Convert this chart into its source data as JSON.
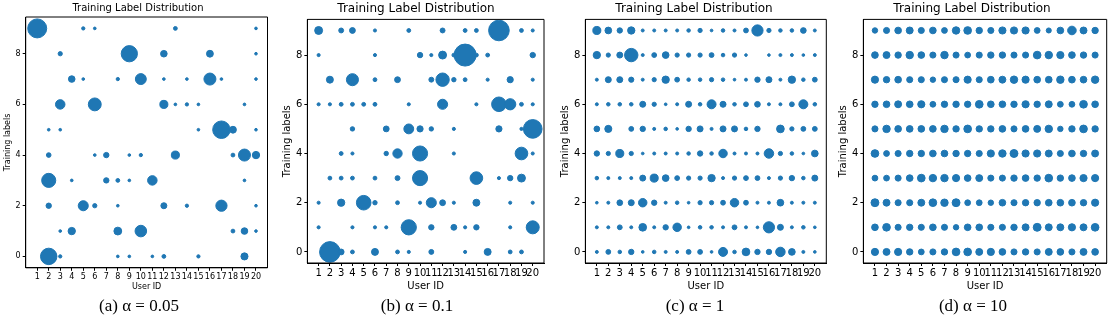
{
  "chart_data": [
    {
      "type": "bubble",
      "title": "Training Label Distribution",
      "xlabel": "User ID",
      "ylabel": "Training labels",
      "xlim": [
        0,
        21
      ],
      "xticks": [
        1,
        2,
        3,
        4,
        5,
        6,
        7,
        8,
        9,
        10,
        11,
        12,
        13,
        14,
        15,
        16,
        17,
        18,
        19,
        20
      ],
      "ylim": [
        -0.45,
        9.45
      ],
      "yticks": [
        0,
        2,
        4,
        6,
        8
      ],
      "annotations": [
        "(a) α = 0.05"
      ],
      "series": [
        {
          "color": "#1f77b4",
          "x": [
            1,
            5,
            6,
            13,
            20
          ],
          "values": [
            9,
            9,
            9,
            9,
            9
          ],
          "sizes": [
            1,
            0.03,
            0.02,
            0.04,
            0.02
          ]
        },
        {
          "color": "#1f77b4",
          "x": [
            3,
            9,
            12,
            16,
            20
          ],
          "values": [
            8,
            8,
            8,
            8,
            8
          ],
          "sizes": [
            0.05,
            0.73,
            0.12,
            0.13,
            0.02
          ]
        },
        {
          "color": "#1f77b4",
          "x": [
            4,
            5,
            8,
            10,
            12,
            14,
            16,
            17,
            20
          ],
          "values": [
            7,
            7,
            7,
            7,
            7,
            7,
            7,
            7,
            7
          ],
          "sizes": [
            0.12,
            0.02,
            0.03,
            0.33,
            0.02,
            0.02,
            0.4,
            0.02,
            0.02
          ]
        },
        {
          "color": "#1f77b4",
          "x": [
            3,
            6,
            12,
            13,
            14,
            15,
            19
          ],
          "values": [
            6,
            6,
            6,
            6,
            6,
            6,
            6
          ],
          "sizes": [
            0.25,
            0.46,
            0.18,
            0.02,
            0.03,
            0.02,
            0.02
          ]
        },
        {
          "color": "#1f77b4",
          "x": [
            2,
            3,
            15,
            17,
            18,
            20
          ],
          "values": [
            5,
            5,
            5,
            5,
            5,
            5
          ],
          "sizes": [
            0.02,
            0.02,
            0.02,
            0.85,
            0.13,
            0.02
          ]
        },
        {
          "color": "#1f77b4",
          "x": [
            2,
            6,
            7,
            9,
            10,
            13,
            18,
            19,
            20
          ],
          "values": [
            4,
            4,
            4,
            4,
            4,
            4,
            4,
            4,
            4
          ],
          "sizes": [
            0.06,
            0.02,
            0.08,
            0.02,
            0.03,
            0.18,
            0.04,
            0.4,
            0.15
          ]
        },
        {
          "color": "#1f77b4",
          "x": [
            2,
            4,
            7,
            8,
            9,
            11,
            19
          ],
          "values": [
            3,
            3,
            3,
            3,
            3,
            3,
            3
          ],
          "sizes": [
            0.55,
            0.02,
            0.08,
            0.04,
            0.02,
            0.25,
            0.02
          ]
        },
        {
          "color": "#1f77b4",
          "x": [
            2,
            5,
            6,
            8,
            12,
            14,
            17,
            20
          ],
          "values": [
            2,
            2,
            2,
            2,
            2,
            2,
            2,
            2
          ],
          "sizes": [
            0.08,
            0.28,
            0.05,
            0.02,
            0.1,
            0.03,
            0.35,
            0.02
          ]
        },
        {
          "color": "#1f77b4",
          "x": [
            3,
            4,
            8,
            10,
            18,
            19,
            20
          ],
          "values": [
            1,
            1,
            1,
            1,
            1,
            1,
            1
          ],
          "sizes": [
            0.02,
            0.15,
            0.17,
            0.37,
            0.04,
            0.12,
            0.02
          ]
        },
        {
          "color": "#1f77b4",
          "x": [
            2,
            3,
            8,
            9,
            11,
            12,
            15,
            19
          ],
          "values": [
            0,
            0,
            0,
            0,
            0,
            0,
            0,
            0
          ],
          "sizes": [
            0.75,
            0.03,
            0.02,
            0.02,
            0.02,
            0.04,
            0.03,
            0.14
          ]
        }
      ]
    },
    {
      "type": "bubble",
      "title": "Training Label Distribution",
      "xlabel": "User ID",
      "ylabel": "Training labels",
      "xlim": [
        0,
        21
      ],
      "xticks": [
        1,
        2,
        3,
        4,
        5,
        6,
        7,
        8,
        9,
        10,
        11,
        12,
        13,
        14,
        15,
        16,
        17,
        18,
        19,
        20
      ],
      "ylim": [
        -0.45,
        9.45
      ],
      "yticks": [
        0,
        2,
        4,
        6,
        8
      ],
      "annotations": [
        "(b) α = 0.1"
      ],
      "series": [
        {
          "color": "#1f77b4",
          "x": [
            1,
            3,
            4,
            6,
            9,
            12,
            14,
            15,
            17,
            19,
            20
          ],
          "values": [
            9,
            9,
            9,
            9,
            9,
            9,
            9,
            9,
            9,
            9,
            9
          ],
          "sizes": [
            0.13,
            0.05,
            0.07,
            0.02,
            0.03,
            0.05,
            0.03,
            0.03,
            0.88,
            0.03,
            0.02
          ]
        },
        {
          "color": "#1f77b4",
          "x": [
            1,
            6,
            10,
            11,
            12,
            13,
            14,
            15,
            16,
            20
          ],
          "values": [
            8,
            8,
            8,
            8,
            8,
            8,
            8,
            8,
            8,
            8
          ],
          "sizes": [
            0.02,
            0.02,
            0.06,
            0.02,
            0.13,
            0.03,
            1,
            0.03,
            0.03,
            0.06
          ]
        },
        {
          "color": "#1f77b4",
          "x": [
            2,
            4,
            6,
            8,
            11,
            12,
            13,
            14,
            16,
            18,
            20
          ],
          "values": [
            7,
            7,
            7,
            7,
            7,
            7,
            7,
            7,
            7,
            7,
            7
          ],
          "sizes": [
            0.1,
            0.3,
            0.03,
            0.07,
            0.05,
            0.37,
            0.04,
            0.03,
            0.02,
            0.08,
            0.02
          ]
        },
        {
          "color": "#1f77b4",
          "x": [
            1,
            2,
            3,
            4,
            5,
            6,
            9,
            12,
            15,
            17,
            18,
            19,
            20
          ],
          "values": [
            6,
            6,
            6,
            6,
            6,
            6,
            6,
            6,
            6,
            6,
            6,
            6,
            6
          ],
          "sizes": [
            0.02,
            0.02,
            0.03,
            0.03,
            0.03,
            0.03,
            0.02,
            0.21,
            0.02,
            0.44,
            0.26,
            0.03,
            0.02
          ]
        },
        {
          "color": "#1f77b4",
          "x": [
            4,
            7,
            9,
            10,
            11,
            13,
            17,
            19,
            20
          ],
          "values": [
            5,
            5,
            5,
            5,
            5,
            5,
            5,
            5,
            5
          ],
          "sizes": [
            0.04,
            0.07,
            0.2,
            0.08,
            0.04,
            0.02,
            0.08,
            0.02,
            0.72
          ]
        },
        {
          "color": "#1f77b4",
          "x": [
            3,
            4,
            7,
            8,
            10,
            13,
            19,
            20
          ],
          "values": [
            4,
            4,
            4,
            4,
            4,
            4,
            4,
            4
          ],
          "sizes": [
            0.03,
            0.02,
            0.04,
            0.18,
            0.47,
            0.02,
            0.33,
            0.02
          ]
        },
        {
          "color": "#1f77b4",
          "x": [
            2,
            3,
            4,
            6,
            8,
            10,
            15,
            17,
            18,
            19
          ],
          "values": [
            3,
            3,
            3,
            3,
            3,
            3,
            3,
            3,
            3,
            3
          ],
          "sizes": [
            0.03,
            0.03,
            0.03,
            0.03,
            0.05,
            0.47,
            0.33,
            0.02,
            0.06,
            0.13
          ]
        },
        {
          "color": "#1f77b4",
          "x": [
            1,
            3,
            5,
            6,
            8,
            10,
            11,
            12,
            13,
            15,
            18,
            20
          ],
          "values": [
            2,
            2,
            2,
            2,
            2,
            2,
            2,
            2,
            2,
            2,
            2,
            2
          ],
          "sizes": [
            0.02,
            0.11,
            0.44,
            0.04,
            0.03,
            0.02,
            0.21,
            0.07,
            0.02,
            0.1,
            0.02,
            0.02
          ]
        },
        {
          "color": "#1f77b4",
          "x": [
            1,
            4,
            6,
            7,
            9,
            11,
            13,
            14,
            15,
            18,
            20
          ],
          "values": [
            1,
            1,
            1,
            1,
            1,
            1,
            1,
            1,
            1,
            1,
            1
          ],
          "sizes": [
            0.02,
            0.02,
            0.02,
            0.02,
            0.48,
            0.06,
            0.07,
            0.02,
            0.06,
            0.02,
            0.35
          ]
        },
        {
          "color": "#1f77b4",
          "x": [
            2,
            3,
            4,
            6,
            8,
            9,
            11,
            14,
            16,
            18,
            19
          ],
          "values": [
            0,
            0,
            0,
            0,
            0,
            0,
            0,
            0,
            0,
            0,
            0
          ],
          "sizes": [
            0.88,
            0.07,
            0.03,
            0.1,
            0.03,
            0.02,
            0.05,
            0.02,
            0.1,
            0.03,
            0.03
          ]
        }
      ]
    },
    {
      "type": "bubble",
      "title": "Training Label Distribution",
      "xlabel": "User ID",
      "ylabel": "Training labels",
      "xlim": [
        0,
        21
      ],
      "xticks": [
        1,
        2,
        3,
        4,
        5,
        6,
        7,
        8,
        9,
        10,
        11,
        12,
        13,
        14,
        15,
        16,
        17,
        18,
        19,
        20
      ],
      "ylim": [
        -0.45,
        9.45
      ],
      "yticks": [
        0,
        2,
        4,
        6,
        8
      ],
      "annotations": [
        "(c) α = 1"
      ],
      "series": [
        {
          "color": "#1f77b4",
          "x": [
            1,
            2,
            3,
            4,
            5,
            6,
            7,
            8,
            9,
            10,
            11,
            12,
            13,
            14,
            15,
            16,
            17,
            18,
            19,
            20
          ],
          "values": [
            9,
            9,
            9,
            9,
            9,
            9,
            9,
            9,
            9,
            9,
            9,
            9,
            9,
            9,
            9,
            9,
            9,
            9,
            9,
            9
          ],
          "sizes": [
            0.36,
            0.25,
            0.16,
            0.3,
            0.05,
            0.05,
            0.05,
            0.05,
            0.07,
            0.1,
            0.04,
            0.07,
            0.05,
            0.13,
            0.7,
            0.1,
            0.07,
            0.07,
            0.18,
            0.05
          ]
        },
        {
          "color": "#1f77b4",
          "x": [
            1,
            2,
            3,
            4,
            5,
            6,
            7,
            8,
            9,
            10,
            11,
            12,
            13,
            14,
            16,
            17,
            18,
            19,
            20
          ],
          "values": [
            8,
            8,
            8,
            8,
            8,
            8,
            8,
            8,
            8,
            8,
            8,
            8,
            8,
            8,
            8,
            8,
            8,
            8,
            8
          ],
          "sizes": [
            0.3,
            0.1,
            0.2,
            1,
            0.05,
            0.13,
            0.25,
            0.1,
            0.1,
            0.1,
            0.13,
            0.07,
            0.1,
            0.04,
            0.04,
            0.05,
            0.05,
            0.04,
            0.05
          ]
        },
        {
          "color": "#1f77b4",
          "x": [
            1,
            2,
            3,
            4,
            5,
            6,
            7,
            8,
            9,
            10,
            11,
            12,
            13,
            14,
            15,
            16,
            17,
            18,
            19,
            20
          ],
          "values": [
            7,
            7,
            7,
            7,
            7,
            7,
            7,
            7,
            7,
            7,
            7,
            7,
            7,
            7,
            7,
            7,
            7,
            7,
            7,
            7
          ],
          "sizes": [
            0.05,
            0.2,
            0.2,
            0.15,
            0.05,
            0.1,
            0.3,
            0.13,
            0.07,
            0.07,
            0.1,
            0.07,
            0.04,
            0.05,
            0.16,
            0.2,
            0.05,
            0.3,
            0.07,
            0.13
          ]
        },
        {
          "color": "#1f77b4",
          "x": [
            1,
            2,
            3,
            4,
            5,
            6,
            7,
            8,
            9,
            10,
            11,
            12,
            13,
            14,
            15,
            16,
            17,
            18,
            19,
            20
          ],
          "values": [
            6,
            6,
            6,
            6,
            6,
            6,
            6,
            6,
            6,
            6,
            6,
            6,
            6,
            6,
            6,
            6,
            6,
            6,
            6,
            6
          ],
          "sizes": [
            0.05,
            0.07,
            0.07,
            0.07,
            0.2,
            0.1,
            0.04,
            0.05,
            0.2,
            0.07,
            0.45,
            0.2,
            0.07,
            0.13,
            0.18,
            0.05,
            0.05,
            0.13,
            0.45,
            0.07
          ]
        },
        {
          "color": "#1f77b4",
          "x": [
            1,
            2,
            4,
            5,
            6,
            7,
            8,
            9,
            10,
            11,
            12,
            13,
            14,
            15,
            17,
            18,
            19,
            20
          ],
          "values": [
            5,
            5,
            5,
            5,
            5,
            5,
            5,
            5,
            5,
            5,
            5,
            5,
            5,
            5,
            5,
            5,
            5,
            5
          ],
          "sizes": [
            0.18,
            0.28,
            0.13,
            0.16,
            0.05,
            0.07,
            0.04,
            0.16,
            0.2,
            0.05,
            0.2,
            0.2,
            0.07,
            0.16,
            0.33,
            0.1,
            0.13,
            0.13
          ]
        },
        {
          "color": "#1f77b4",
          "x": [
            1,
            2,
            3,
            4,
            5,
            6,
            7,
            8,
            9,
            10,
            11,
            12,
            13,
            14,
            15,
            16,
            17,
            18,
            19,
            20
          ],
          "values": [
            4,
            4,
            4,
            4,
            4,
            4,
            4,
            4,
            4,
            4,
            4,
            4,
            4,
            4,
            4,
            4,
            4,
            4,
            4,
            4
          ],
          "sizes": [
            0.16,
            0.1,
            0.36,
            0.1,
            0.04,
            0.05,
            0.05,
            0.05,
            0.07,
            0.16,
            0.07,
            0.4,
            0.05,
            0.05,
            0.05,
            0.5,
            0.1,
            0.07,
            0.04,
            0.25
          ]
        },
        {
          "color": "#1f77b4",
          "x": [
            1,
            2,
            3,
            4,
            5,
            6,
            7,
            8,
            9,
            10,
            11,
            12,
            13,
            14,
            15,
            16,
            17,
            18,
            19,
            20
          ],
          "values": [
            3,
            3,
            3,
            3,
            3,
            3,
            3,
            3,
            3,
            3,
            3,
            3,
            3,
            3,
            3,
            3,
            3,
            3,
            3,
            3
          ],
          "sizes": [
            0.07,
            0.05,
            0.05,
            0.05,
            0.2,
            0.36,
            0.25,
            0.13,
            0.1,
            0.1,
            0.3,
            0.05,
            0.1,
            0.13,
            0.13,
            0.05,
            0.1,
            0.16,
            0.07,
            0.2
          ]
        },
        {
          "color": "#1f77b4",
          "x": [
            1,
            2,
            3,
            4,
            5,
            6,
            7,
            8,
            9,
            10,
            11,
            12,
            13,
            14,
            15,
            16,
            17,
            18,
            19,
            20
          ],
          "values": [
            2,
            2,
            2,
            2,
            2,
            2,
            2,
            2,
            2,
            2,
            2,
            2,
            2,
            2,
            2,
            2,
            2,
            2,
            2,
            2
          ],
          "sizes": [
            0.04,
            0.05,
            0.18,
            0.2,
            0.4,
            0.16,
            0.05,
            0.07,
            0.04,
            0.1,
            0.1,
            0.13,
            0.4,
            0.13,
            0.05,
            0.05,
            0.25,
            0.05,
            0.05,
            0.05
          ]
        },
        {
          "color": "#1f77b4",
          "x": [
            1,
            2,
            3,
            4,
            5,
            6,
            7,
            8,
            9,
            10,
            11,
            12,
            13,
            14,
            15,
            16,
            17,
            18,
            19,
            20
          ],
          "values": [
            1,
            1,
            1,
            1,
            1,
            1,
            1,
            1,
            1,
            1,
            1,
            1,
            1,
            1,
            1,
            1,
            1,
            1,
            1,
            1
          ],
          "sizes": [
            0.05,
            0.05,
            0.13,
            0.05,
            0.33,
            0.05,
            0.16,
            0.4,
            0.04,
            0.07,
            0.07,
            0.05,
            0.13,
            0.05,
            0.04,
            0.7,
            0.2,
            0.05,
            0.07,
            0.04
          ]
        },
        {
          "color": "#1f77b4",
          "x": [
            1,
            2,
            3,
            4,
            5,
            6,
            7,
            8,
            9,
            10,
            11,
            12,
            13,
            14,
            15,
            16,
            17,
            18,
            19,
            20
          ],
          "values": [
            0,
            0,
            0,
            0,
            0,
            0,
            0,
            0,
            0,
            0,
            0,
            0,
            0,
            0,
            0,
            0,
            0,
            0,
            0,
            0
          ],
          "sizes": [
            0.05,
            0.13,
            0.07,
            0.16,
            0.04,
            0.07,
            0.05,
            0.05,
            0.13,
            0.13,
            0.04,
            0.45,
            0.07,
            0.33,
            0.16,
            0.16,
            0.5,
            0.25,
            0.05,
            0.04
          ]
        }
      ]
    },
    {
      "type": "bubble",
      "title": "Training Label Distribution",
      "xlabel": "User ID",
      "ylabel": "Training labels",
      "xlim": [
        0,
        21
      ],
      "xticks": [
        1,
        2,
        3,
        4,
        5,
        6,
        7,
        8,
        9,
        10,
        11,
        12,
        13,
        14,
        15,
        16,
        17,
        18,
        19,
        20
      ],
      "ylim": [
        -0.45,
        9.45
      ],
      "yticks": [
        0,
        2,
        4,
        6,
        8
      ],
      "annotations": [
        "(d) α = 10"
      ],
      "series": [
        {
          "color": "#1f77b4",
          "x": [
            1,
            2,
            3,
            4,
            5,
            6,
            7,
            8,
            9,
            10,
            11,
            12,
            13,
            14,
            15,
            16,
            17,
            18,
            19,
            20
          ],
          "values": [
            9,
            9,
            9,
            9,
            9,
            9,
            9,
            9,
            9,
            9,
            9,
            9,
            9,
            9,
            9,
            9,
            9,
            9,
            9,
            9
          ],
          "sizes": [
            0.4,
            0.5,
            0.6,
            0.65,
            0.5,
            0.6,
            0.45,
            0.75,
            0.8,
            0.55,
            0.5,
            0.7,
            0.7,
            0.7,
            0.45,
            0.35,
            0.6,
            1,
            0.65,
            0.55
          ]
        },
        {
          "color": "#1f77b4",
          "x": [
            1,
            2,
            3,
            4,
            5,
            6,
            7,
            8,
            9,
            10,
            11,
            12,
            13,
            14,
            15,
            16,
            17,
            18,
            19,
            20
          ],
          "values": [
            8,
            8,
            8,
            8,
            8,
            8,
            8,
            8,
            8,
            8,
            8,
            8,
            8,
            8,
            8,
            8,
            8,
            8,
            8,
            8
          ],
          "sizes": [
            0.6,
            0.65,
            0.55,
            0.75,
            0.6,
            0.5,
            0.75,
            0.5,
            0.45,
            0.5,
            0.55,
            0.55,
            0.5,
            0.5,
            0.8,
            0.75,
            0.7,
            0.6,
            0.55,
            0.5
          ]
        },
        {
          "color": "#1f77b4",
          "x": [
            1,
            2,
            3,
            4,
            5,
            6,
            7,
            8,
            9,
            10,
            11,
            12,
            13,
            14,
            15,
            16,
            17,
            18,
            19,
            20
          ],
          "values": [
            7,
            7,
            7,
            7,
            7,
            7,
            7,
            7,
            7,
            7,
            7,
            7,
            7,
            7,
            7,
            7,
            7,
            7,
            7,
            7
          ],
          "sizes": [
            0.7,
            0.55,
            0.6,
            0.5,
            0.5,
            0.4,
            0.5,
            0.5,
            0.7,
            0.5,
            0.6,
            0.65,
            0.75,
            0.7,
            0.6,
            0.6,
            0.75,
            0.6,
            0.6,
            0.75
          ]
        },
        {
          "color": "#1f77b4",
          "x": [
            1,
            2,
            3,
            4,
            5,
            6,
            7,
            8,
            9,
            10,
            11,
            12,
            13,
            14,
            15,
            16,
            17,
            18,
            19,
            20
          ],
          "values": [
            6,
            6,
            6,
            6,
            6,
            6,
            6,
            6,
            6,
            6,
            6,
            6,
            6,
            6,
            6,
            6,
            6,
            6,
            6,
            6
          ],
          "sizes": [
            0.55,
            0.6,
            0.65,
            0.6,
            0.7,
            0.45,
            0.55,
            0.55,
            0.55,
            0.8,
            0.6,
            0.6,
            0.55,
            0.7,
            0.55,
            0.65,
            0.45,
            0.45,
            0.8,
            0.6
          ]
        },
        {
          "color": "#1f77b4",
          "x": [
            1,
            2,
            3,
            4,
            5,
            6,
            7,
            8,
            9,
            10,
            11,
            12,
            13,
            14,
            15,
            16,
            17,
            18,
            19,
            20
          ],
          "values": [
            5,
            5,
            5,
            5,
            5,
            5,
            5,
            5,
            5,
            5,
            5,
            5,
            5,
            5,
            5,
            5,
            5,
            5,
            5,
            5
          ],
          "sizes": [
            0.5,
            0.75,
            0.6,
            0.6,
            0.6,
            0.6,
            0.75,
            0.55,
            0.8,
            0.55,
            0.55,
            0.6,
            0.5,
            0.6,
            0.65,
            0.75,
            0.4,
            0.55,
            0.8,
            0.55
          ]
        },
        {
          "color": "#1f77b4",
          "x": [
            1,
            2,
            3,
            4,
            5,
            6,
            7,
            8,
            9,
            10,
            11,
            12,
            13,
            14,
            15,
            16,
            17,
            18,
            19,
            20
          ],
          "values": [
            4,
            4,
            4,
            4,
            4,
            4,
            4,
            4,
            4,
            4,
            4,
            4,
            4,
            4,
            4,
            4,
            4,
            4,
            4,
            4
          ],
          "sizes": [
            0.8,
            0.45,
            0.5,
            0.55,
            0.55,
            0.6,
            0.6,
            0.55,
            0.55,
            0.5,
            0.7,
            0.75,
            0.85,
            0.7,
            0.7,
            0.65,
            0.5,
            0.6,
            0.55,
            0.65
          ]
        },
        {
          "color": "#1f77b4",
          "x": [
            1,
            2,
            3,
            4,
            5,
            6,
            7,
            8,
            9,
            10,
            11,
            12,
            13,
            14,
            15,
            16,
            17,
            18,
            19,
            20
          ],
          "values": [
            3,
            3,
            3,
            3,
            3,
            3,
            3,
            3,
            3,
            3,
            3,
            3,
            3,
            3,
            3,
            3,
            3,
            3,
            3,
            3
          ],
          "sizes": [
            0.45,
            0.45,
            0.5,
            0.6,
            0.8,
            0.75,
            0.75,
            0.7,
            0.6,
            0.65,
            0.5,
            0.5,
            0.55,
            0.6,
            0.55,
            0.8,
            0.55,
            0.6,
            0.7,
            0.7
          ]
        },
        {
          "color": "#1f77b4",
          "x": [
            1,
            2,
            3,
            4,
            5,
            6,
            7,
            8,
            9,
            10,
            11,
            12,
            13,
            14,
            15,
            16,
            17,
            18,
            19,
            20
          ],
          "values": [
            2,
            2,
            2,
            2,
            2,
            2,
            2,
            2,
            2,
            2,
            2,
            2,
            2,
            2,
            2,
            2,
            2,
            2,
            2,
            2
          ],
          "sizes": [
            0.85,
            0.65,
            0.5,
            0.5,
            0.65,
            0.8,
            0.75,
            0.85,
            0.45,
            0.45,
            0.4,
            0.6,
            0.5,
            0.55,
            0.55,
            0.6,
            0.6,
            0.6,
            0.55,
            0.7
          ]
        },
        {
          "color": "#1f77b4",
          "x": [
            1,
            2,
            3,
            4,
            5,
            6,
            7,
            8,
            9,
            10,
            11,
            12,
            13,
            14,
            15,
            16,
            17,
            18,
            19,
            20
          ],
          "values": [
            1,
            1,
            1,
            1,
            1,
            1,
            1,
            1,
            1,
            1,
            1,
            1,
            1,
            1,
            1,
            1,
            1,
            1,
            1,
            1
          ],
          "sizes": [
            0.6,
            0.8,
            0.5,
            0.55,
            0.5,
            0.6,
            0.5,
            0.4,
            0.6,
            0.6,
            0.5,
            0.5,
            0.55,
            0.65,
            0.85,
            0.65,
            0.65,
            0.7,
            0.65,
            0.8
          ]
        },
        {
          "color": "#1f77b4",
          "x": [
            1,
            2,
            3,
            4,
            5,
            6,
            7,
            8,
            9,
            10,
            11,
            12,
            13,
            14,
            15,
            16,
            17,
            18,
            19,
            20
          ],
          "values": [
            0,
            0,
            0,
            0,
            0,
            0,
            0,
            0,
            0,
            0,
            0,
            0,
            0,
            0,
            0,
            0,
            0,
            0,
            0,
            0
          ],
          "sizes": [
            0.7,
            0.65,
            0.7,
            0.55,
            0.45,
            0.5,
            0.55,
            0.8,
            0.8,
            0.65,
            0.7,
            0.6,
            0.5,
            0.55,
            0.5,
            0.65,
            0.6,
            0.5,
            0.65,
            0.6
          ]
        }
      ]
    }
  ]
}
